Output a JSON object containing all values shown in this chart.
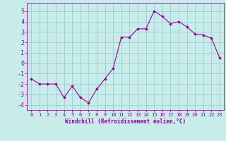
{
  "x": [
    0,
    1,
    2,
    3,
    4,
    5,
    6,
    7,
    8,
    9,
    10,
    11,
    12,
    13,
    14,
    15,
    16,
    17,
    18,
    19,
    20,
    21,
    22,
    23
  ],
  "y": [
    -1.5,
    -2.0,
    -2.0,
    -2.0,
    -3.3,
    -2.2,
    -3.3,
    -3.8,
    -2.5,
    -1.5,
    -0.5,
    2.5,
    2.5,
    3.3,
    3.3,
    5.0,
    4.5,
    3.8,
    4.0,
    3.5,
    2.8,
    2.7,
    2.4,
    0.5
  ],
  "line_color": "#990099",
  "marker": "D",
  "markersize": 1.8,
  "linewidth": 0.8,
  "bg_color": "#c8ecea",
  "grid_color": "#9ecece",
  "xlabel": "Windchill (Refroidissement éolien,°C)",
  "ylabel": "",
  "xlim": [
    -0.5,
    23.5
  ],
  "ylim": [
    -4.5,
    5.8
  ],
  "yticks": [
    -4,
    -3,
    -2,
    -1,
    0,
    1,
    2,
    3,
    4,
    5
  ],
  "xticks": [
    0,
    1,
    2,
    3,
    4,
    5,
    6,
    7,
    8,
    9,
    10,
    11,
    12,
    13,
    14,
    15,
    16,
    17,
    18,
    19,
    20,
    21,
    22,
    23
  ],
  "tick_color": "#990099",
  "label_color": "#990099",
  "xlabel_fontsize": 5.5,
  "ytick_fontsize": 6.0,
  "xtick_fontsize": 5.0
}
